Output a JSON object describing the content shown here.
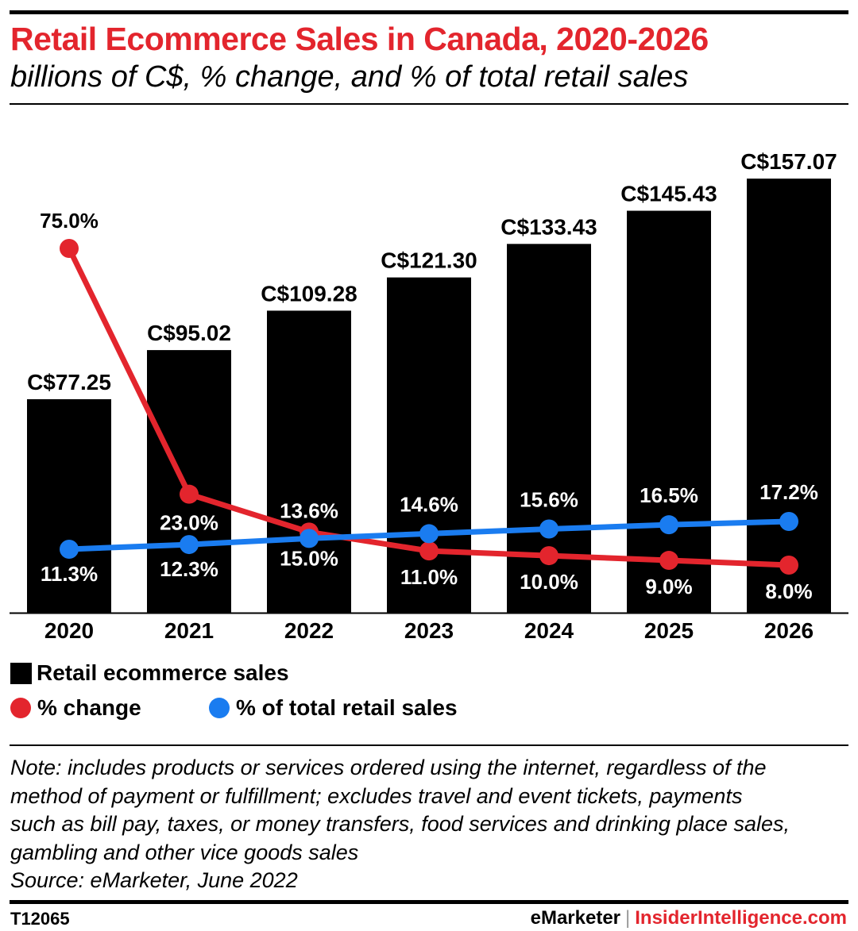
{
  "header": {
    "title": "Retail Ecommerce Sales in Canada, 2020-2026",
    "subtitle": "billions of C$, % change, and % of total retail sales"
  },
  "chart_data": {
    "type": "bar",
    "title": "Retail Ecommerce Sales in Canada, 2020-2026",
    "subtitle": "billions of C$, % change, and % of total retail sales",
    "categories": [
      "2020",
      "2021",
      "2022",
      "2023",
      "2024",
      "2025",
      "2026"
    ],
    "series": [
      {
        "name": "Retail ecommerce sales",
        "type": "bar",
        "color": "#000000",
        "values": [
          77.25,
          95.02,
          109.28,
          121.3,
          133.43,
          145.43,
          157.07
        ],
        "labels": [
          "C$77.25",
          "C$95.02",
          "C$109.28",
          "C$121.30",
          "C$133.43",
          "C$145.43",
          "C$157.07"
        ]
      },
      {
        "name": "% change",
        "type": "line",
        "color": "#e3252d",
        "values": [
          75.0,
          23.0,
          15.0,
          11.0,
          10.0,
          9.0,
          8.0
        ],
        "labels": [
          "75.0%",
          "23.0%",
          "15.0%",
          "11.0%",
          "10.0%",
          "9.0%",
          "8.0%"
        ]
      },
      {
        "name": "% of total retail sales",
        "type": "line",
        "color": "#1a7cf0",
        "values": [
          11.3,
          12.3,
          13.6,
          14.6,
          15.6,
          16.5,
          17.2
        ],
        "labels": [
          "11.3%",
          "12.3%",
          "13.6%",
          "14.6%",
          "15.6%",
          "16.5%",
          "17.2%"
        ]
      }
    ],
    "ylim": [
      0,
      157.07
    ],
    "grid": false,
    "legend_position": "bottom-left"
  },
  "legend": {
    "bars": "Retail ecommerce sales",
    "change": "% change",
    "share": "% of total retail sales"
  },
  "footer": {
    "note_lines": [
      "Note: includes products or services ordered using the internet, regardless of the",
      "method of payment or fulfillment; excludes travel and event tickets, payments",
      "such as bill pay, taxes, or money transfers, food services and drinking place sales,",
      "gambling and other vice goods sales"
    ],
    "source": "Source: eMarketer, June 2022",
    "chart_id": "T12065",
    "brand_emarketer": "eMarketer",
    "brand_separator": "|",
    "brand_insider": "InsiderIntelligence.com"
  },
  "colors": {
    "accent": "#e3252d",
    "blue": "#1a7cf0",
    "bar": "#000000"
  }
}
